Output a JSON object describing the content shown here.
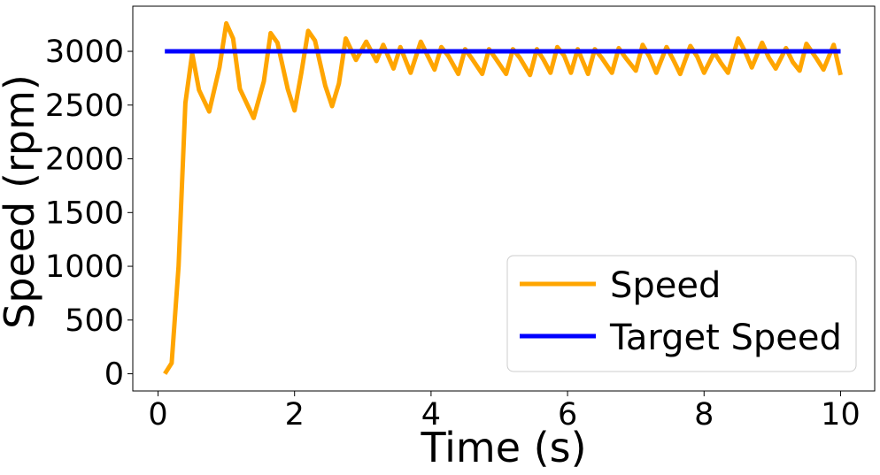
{
  "chart_data": {
    "type": "line",
    "title": "",
    "xlabel": "Time (s)",
    "ylabel": "Speed (rpm)",
    "xlim": [
      -0.37,
      10.5
    ],
    "ylim": [
      -160,
      3420
    ],
    "xticks": [
      0,
      2,
      4,
      6,
      8,
      10
    ],
    "yticks": [
      0,
      500,
      1000,
      1500,
      2000,
      2500,
      3000
    ],
    "grid": false,
    "legend_position": "lower-right",
    "series": [
      {
        "name": "Speed",
        "color": "#FFA500",
        "x": [
          0.1,
          0.2,
          0.3,
          0.4,
          0.5,
          0.6,
          0.75,
          0.9,
          1.0,
          1.1,
          1.2,
          1.4,
          1.55,
          1.65,
          1.75,
          1.9,
          2.0,
          2.1,
          2.2,
          2.3,
          2.45,
          2.55,
          2.65,
          2.75,
          2.9,
          3.05,
          3.2,
          3.3,
          3.45,
          3.55,
          3.7,
          3.85,
          3.95,
          4.05,
          4.15,
          4.25,
          4.4,
          4.5,
          4.6,
          4.75,
          4.85,
          4.95,
          5.1,
          5.2,
          5.3,
          5.45,
          5.55,
          5.65,
          5.75,
          5.85,
          5.95,
          6.05,
          6.15,
          6.3,
          6.4,
          6.5,
          6.65,
          6.75,
          6.85,
          7.0,
          7.1,
          7.2,
          7.3,
          7.45,
          7.55,
          7.65,
          7.8,
          7.9,
          8.0,
          8.15,
          8.25,
          8.35,
          8.5,
          8.6,
          8.7,
          8.85,
          8.95,
          9.05,
          9.2,
          9.3,
          9.4,
          9.5,
          9.65,
          9.75,
          9.9,
          10.0
        ],
        "values": [
          0,
          100,
          1000,
          2520,
          2980,
          2640,
          2440,
          2850,
          3260,
          3120,
          2650,
          2380,
          2720,
          3170,
          3080,
          2650,
          2450,
          2800,
          3190,
          3100,
          2680,
          2490,
          2700,
          3120,
          2920,
          3090,
          2910,
          3060,
          2840,
          3040,
          2800,
          3090,
          2960,
          2830,
          3040,
          2960,
          2790,
          3020,
          2930,
          2790,
          3020,
          2930,
          2790,
          3020,
          2940,
          2780,
          3020,
          2920,
          2800,
          3040,
          2960,
          2800,
          3020,
          2790,
          3020,
          2940,
          2800,
          3030,
          2940,
          2820,
          3060,
          2950,
          2800,
          3040,
          2920,
          2790,
          3050,
          2950,
          2800,
          2990,
          2890,
          2800,
          3120,
          3000,
          2850,
          3080,
          2940,
          2840,
          3030,
          2900,
          2820,
          3070,
          2930,
          2830,
          3060,
          2780
        ]
      },
      {
        "name": "Target Speed",
        "color": "#0000FF",
        "x": [
          0.1,
          10.0
        ],
        "values": [
          3000,
          3000
        ]
      }
    ]
  }
}
